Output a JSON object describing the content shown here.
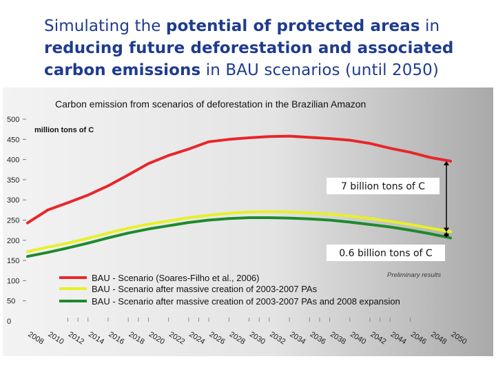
{
  "slide": {
    "title_parts": [
      {
        "text": "Simulating the ",
        "bold": false
      },
      {
        "text": "potential of protected areas",
        "bold": true
      },
      {
        "text": " in ",
        "bold": false
      },
      {
        "text": "reducing future deforestation and associated carbon emissions",
        "bold": true
      },
      {
        "text": " in BAU scenarios (until 2050)",
        "bold": false
      }
    ]
  },
  "chart_data": {
    "type": "line",
    "title": "Carbon emission from scenarios of deforestation in the Brazilian Amazon",
    "ylabel": "million tons of C",
    "xlabel": "",
    "ylim": [
      0,
      500
    ],
    "y_ticks": [
      0,
      50,
      100,
      150,
      200,
      250,
      300,
      350,
      400,
      450,
      500
    ],
    "xlim": [
      2008,
      2050
    ],
    "x_ticks": [
      "2008",
      "2010",
      "2012",
      "2014",
      "2016",
      "2018",
      "2020",
      "2022",
      "2024",
      "2026",
      "2028",
      "2030",
      "2032",
      "2034",
      "2036",
      "2038",
      "2040",
      "2042",
      "2044",
      "2046",
      "2048",
      "2050"
    ],
    "grid": false,
    "legend_position": "bottom-left",
    "series": [
      {
        "name": "BAU - Scenario (Soares-Filho et al., 2006)",
        "color": "#e8262a",
        "x": [
          2008,
          2010,
          2012,
          2014,
          2016,
          2018,
          2020,
          2022,
          2024,
          2026,
          2028,
          2030,
          2032,
          2034,
          2036,
          2038,
          2040,
          2042,
          2044,
          2046,
          2048,
          2050
        ],
        "values": [
          243,
          275,
          293,
          312,
          335,
          362,
          390,
          410,
          426,
          444,
          450,
          454,
          457,
          458,
          455,
          452,
          448,
          440,
          428,
          418,
          405,
          396
        ]
      },
      {
        "name": "BAU - Scenario after massive creation of 2003-2007 PAs",
        "color": "#e8f028",
        "x": [
          2008,
          2010,
          2012,
          2014,
          2016,
          2018,
          2020,
          2022,
          2024,
          2026,
          2028,
          2030,
          2032,
          2034,
          2036,
          2038,
          2040,
          2042,
          2044,
          2046,
          2048,
          2050
        ],
        "values": [
          172,
          183,
          193,
          205,
          218,
          230,
          240,
          248,
          256,
          262,
          267,
          270,
          271,
          270,
          268,
          265,
          260,
          254,
          247,
          239,
          230,
          221
        ]
      },
      {
        "name": "BAU - Scenario after massive creation of 2003-2007 PAs and 2008 expansion",
        "color": "#1e8a2c",
        "x": [
          2008,
          2010,
          2012,
          2014,
          2016,
          2018,
          2020,
          2022,
          2024,
          2026,
          2028,
          2030,
          2032,
          2034,
          2036,
          2038,
          2040,
          2042,
          2044,
          2046,
          2048,
          2050
        ],
        "values": [
          160,
          170,
          181,
          193,
          206,
          218,
          228,
          236,
          244,
          250,
          254,
          256,
          256,
          255,
          253,
          250,
          245,
          239,
          233,
          225,
          216,
          206
        ]
      }
    ],
    "annotations": [
      {
        "text": "7 billion tons of C"
      },
      {
        "text": "0.6 billion tons of C"
      },
      {
        "text": "Preliminary results"
      }
    ]
  }
}
